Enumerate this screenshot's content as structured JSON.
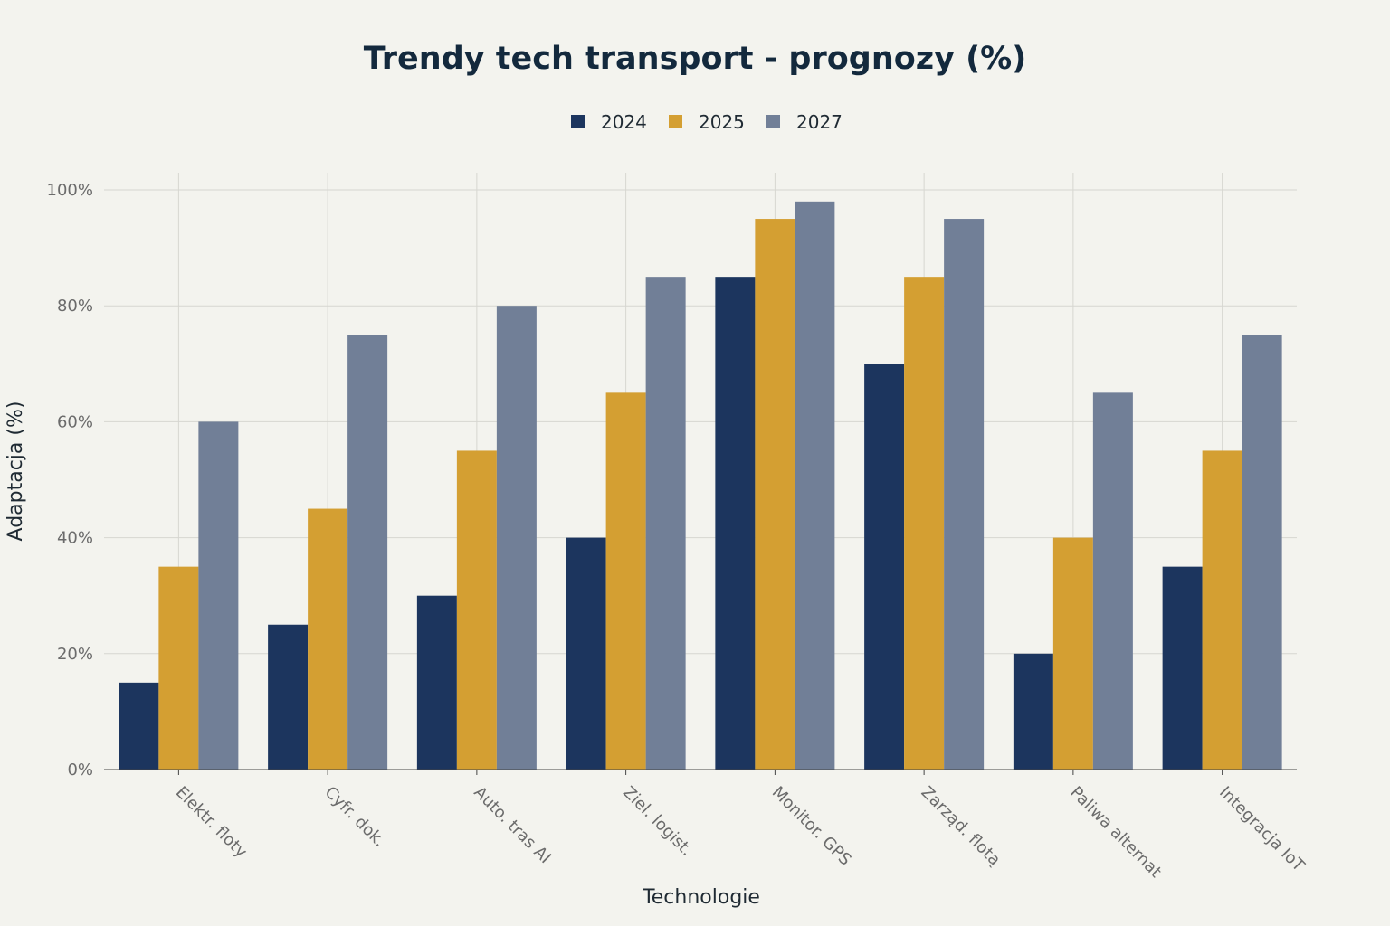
{
  "chart_data": {
    "type": "bar",
    "title": "Trendy tech transport - prognozy (%)",
    "xlabel": "Technologie",
    "ylabel": "Adaptacja (%)",
    "ylim": [
      0,
      100
    ],
    "yticks": [
      0,
      20,
      40,
      60,
      80,
      100
    ],
    "ytick_labels": [
      "0%",
      "20%",
      "40%",
      "60%",
      "80%",
      "100%"
    ],
    "legend_position": "top-center",
    "grid": true,
    "categories": [
      "Elektr. floty",
      "Cyfr. dok.",
      "Auto. tras AI",
      "Ziel. logist.",
      "Monitor. GPS",
      "Zarząd. flotą",
      "Paliwa alternat",
      "Integracja IoT"
    ],
    "series": [
      {
        "name": "2024",
        "color": "#1c355e",
        "values": [
          15,
          25,
          30,
          40,
          85,
          70,
          20,
          35
        ]
      },
      {
        "name": "2025",
        "color": "#d49f32",
        "values": [
          35,
          45,
          55,
          65,
          95,
          85,
          40,
          55
        ]
      },
      {
        "name": "2027",
        "color": "#717f97",
        "values": [
          60,
          75,
          80,
          85,
          98,
          95,
          65,
          75
        ]
      }
    ]
  }
}
